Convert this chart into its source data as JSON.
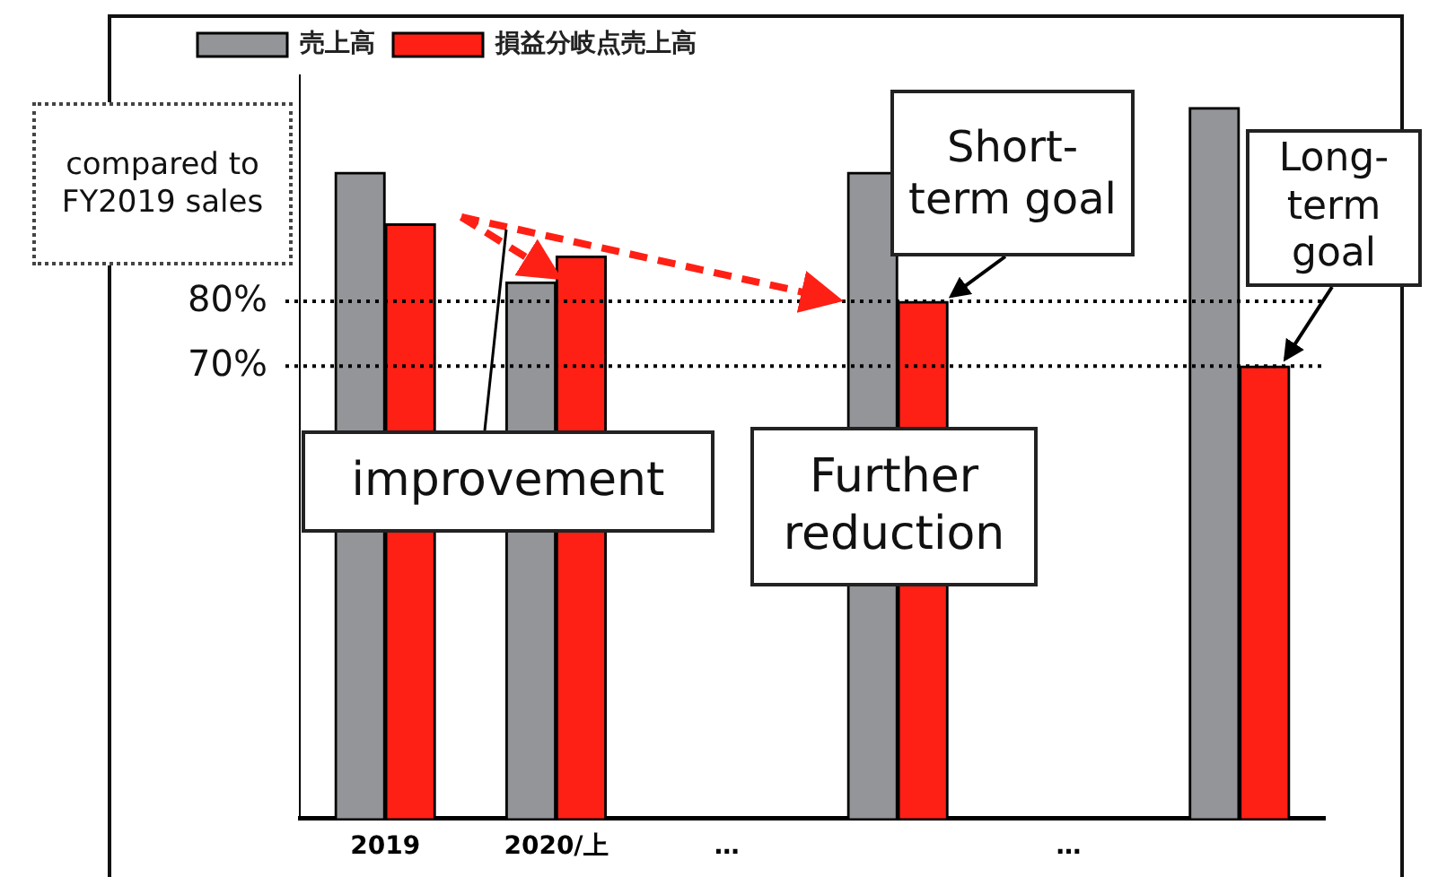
{
  "chart_data": {
    "type": "bar",
    "legend": "top left",
    "grid": false,
    "categories": [
      "2019",
      "2020/上",
      "…",
      null,
      "…",
      null
    ],
    "ylim": [
      0,
      115
    ],
    "yticks": [
      {
        "value": 70,
        "label": "70%"
      },
      {
        "value": 80,
        "label": "80%"
      }
    ],
    "series": [
      {
        "name": "売上高",
        "color": "#939598",
        "values": [
          100,
          83,
          null,
          100,
          null,
          110
        ]
      },
      {
        "name": "損益分岐点売上高",
        "color": "#ff2015",
        "values": [
          92,
          87,
          null,
          80,
          null,
          70
        ]
      }
    ],
    "ref_lines": [
      {
        "axis": "y",
        "value": 80,
        "line_style": "dotted"
      },
      {
        "axis": "y",
        "value": 70,
        "line_style": "dotted"
      }
    ],
    "annotations": [
      "compared to FY2019 sales",
      {
        "text": "Short-term goal",
        "y": 80
      },
      {
        "text": "Long-term goal",
        "y": 70
      },
      "improvement",
      "Further reduction"
    ]
  }
}
